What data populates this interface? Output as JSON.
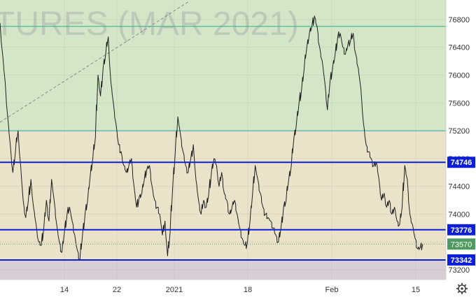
{
  "chart_data": {
    "type": "line",
    "watermark": "TURES (MAR 2021)",
    "x_tick_labels": [
      "14",
      "22",
      "2021",
      "18",
      "Feb",
      "15"
    ],
    "y_ticks": [
      73200,
      73600,
      74000,
      74400,
      74800,
      75200,
      75600,
      76000,
      76400,
      76800
    ],
    "y_tick_labels": [
      "73200",
      "73600",
      "74000",
      "74400",
      "74800",
      "75200",
      "75600",
      "76000",
      "76400",
      "76800"
    ],
    "ylim": [
      73060,
      77080
    ],
    "horizontal_levels": [
      {
        "label": "74746",
        "value": 74746,
        "color": "#0d1fd6"
      },
      {
        "label": "73776",
        "value": 73776,
        "color": "#0d1fd6"
      },
      {
        "label": "73342",
        "value": 73342,
        "color": "#0d1fd6"
      }
    ],
    "thin_levels": [
      {
        "value": 76700,
        "color": "#33b08a"
      },
      {
        "value": 75200,
        "color": "#33a3b0"
      }
    ],
    "last_price": {
      "label": "73570",
      "value": 73570,
      "color": "#4f9a60"
    },
    "zones": [
      {
        "from": 75200,
        "to": 77080,
        "color": "#d3e7c8"
      },
      {
        "from": 73342,
        "to": 75200,
        "color": "#eae2c9"
      },
      {
        "from": 73060,
        "to": 73342,
        "color": "#d8cfd6"
      }
    ],
    "series": [
      {
        "values": [
          76750,
          76300,
          75900,
          75400,
          75000,
          74600,
          74900,
          75200,
          74700,
          74200,
          73950,
          74200,
          74500,
          74100,
          73850,
          73600,
          73550,
          73800,
          74200,
          73900,
          74500,
          74200,
          73850,
          73600,
          73450,
          73750,
          74000,
          74100,
          73900,
          73700,
          73480,
          73350,
          73700,
          74000,
          74200,
          74550,
          74800,
          75100,
          76000,
          75700,
          76100,
          76300,
          76550,
          75900,
          75600,
          75300,
          75000,
          74900,
          74700,
          74600,
          74700,
          74800,
          74400,
          74100,
          74250,
          74300,
          74500,
          74650,
          74700,
          74400,
          74200,
          74100,
          74000,
          73700,
          73900,
          73400,
          73750,
          74400,
          74900,
          75400,
          75150,
          74900,
          74700,
          74600,
          74800,
          75000,
          74500,
          74200,
          74000,
          74200,
          74100,
          74300,
          74600,
          74800,
          74700,
          74400,
          74600,
          74300,
          74200,
          74000,
          74100,
          74200,
          74000,
          73800,
          73650,
          73550,
          73600,
          73900,
          74300,
          74700,
          74500,
          74300,
          74100,
          74000,
          73950,
          73900,
          73800,
          73700,
          73600,
          73800,
          74100,
          74200,
          74500,
          74700,
          75100,
          75300,
          75600,
          75800,
          76100,
          76400,
          76600,
          76700,
          76850,
          76700,
          76400,
          76200,
          75900,
          75500,
          75900,
          76100,
          76300,
          76550,
          76600,
          76400,
          76300,
          76450,
          76500,
          76600,
          76300,
          76100,
          75800,
          75300,
          75000,
          74900,
          74800,
          74700,
          74750,
          74500,
          74200,
          74300,
          74100,
          74200,
          74000,
          74100,
          73900,
          73850,
          74100,
          74700,
          74500,
          74000,
          73850,
          73650,
          73500,
          73520,
          73570
        ]
      }
    ]
  },
  "ui": {
    "settings_icon": "gear-icon"
  }
}
